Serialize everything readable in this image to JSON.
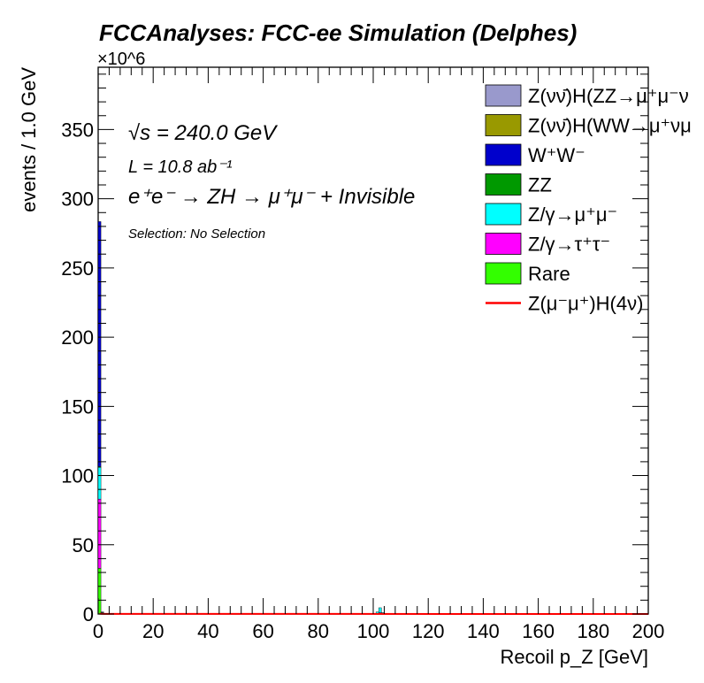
{
  "chart_data": {
    "type": "bar",
    "title": "FCCAnalyses: FCC-ee Simulation (Delphes)",
    "xlabel": "Recoil p_Z [GeV]",
    "ylabel": "events / 1.0 GeV",
    "yscale_label": "×10^6",
    "xlim": [
      0,
      200
    ],
    "ylim": [
      0,
      395
    ],
    "x_ticks": [
      0,
      20,
      40,
      60,
      80,
      100,
      120,
      140,
      160,
      180,
      200
    ],
    "y_ticks": [
      0,
      50,
      100,
      150,
      200,
      250,
      300,
      350
    ],
    "annotations": {
      "sqrt_s": "√s = 240.0 GeV",
      "luminosity": "L = 10.8 ab⁻¹",
      "process": "e⁺e⁻ → ZH → μ⁺μ⁻ + Invisible",
      "selection": "Selection: No Selection"
    },
    "bin_width": 1.0,
    "stack_order_bottom_to_top": [
      "Rare",
      "Z/γ→τ⁺τ⁻",
      "Z/γ→μ⁺μ⁻",
      "ZZ",
      "W⁺W⁻",
      "Z(νν̄)H(WW→μ⁺νμ⁻ν)",
      "Z(νν̄)H(ZZ→μ⁺μ⁻νν)"
    ],
    "series": [
      {
        "name": "Z(νν̄)H(ZZ→μ⁺μ⁻νν)",
        "color": "#9999cc",
        "kind": "fill",
        "points": [
          [
            0.5,
            0.0
          ]
        ]
      },
      {
        "name": "Z(νν̄)H(WW→μ⁺νμ⁻ν)",
        "color": "#999900",
        "kind": "fill",
        "points": [
          [
            0.5,
            0.0
          ]
        ]
      },
      {
        "name": "W⁺W⁻",
        "color": "#0000cc",
        "kind": "fill",
        "points": [
          [
            0.5,
            177
          ],
          [
            1.5,
            0.5
          ]
        ]
      },
      {
        "name": "ZZ",
        "color": "#009900",
        "kind": "fill",
        "points": [
          [
            0.5,
            0.5
          ]
        ]
      },
      {
        "name": "Z/γ→μ⁺μ⁻",
        "color": "#00ffff",
        "kind": "fill",
        "points": [
          [
            0.5,
            23
          ],
          [
            101.5,
            1.5
          ],
          [
            102.5,
            3.5
          ],
          [
            103.5,
            1.0
          ]
        ]
      },
      {
        "name": "Z/γ→τ⁺τ⁻",
        "color": "#ff00ff",
        "kind": "fill",
        "points": [
          [
            0.5,
            50
          ],
          [
            102.5,
            1.0
          ]
        ]
      },
      {
        "name": "Rare",
        "color": "#33ff00",
        "kind": "fill",
        "points": [
          [
            0.5,
            33
          ],
          [
            1.5,
            1.0
          ]
        ]
      },
      {
        "name": "Z(μ⁻μ⁺)H(4ν)",
        "color": "#ff0000",
        "kind": "line",
        "points": [
          [
            0.5,
            0.2
          ],
          [
            1.5,
            0.1
          ],
          [
            200,
            0.0
          ]
        ]
      }
    ]
  },
  "legend": [
    {
      "label": "Z(νν̄)H(ZZ→μ⁺μ⁻ν",
      "color": "#9999cc",
      "kind": "fill"
    },
    {
      "label": "Z(νν̄)H(WW→μ⁺νμ",
      "color": "#999900",
      "kind": "fill"
    },
    {
      "label": "W⁺W⁻",
      "color": "#0000cc",
      "kind": "fill"
    },
    {
      "label": "ZZ",
      "color": "#009900",
      "kind": "fill"
    },
    {
      "label": "Z/γ→μ⁺μ⁻",
      "color": "#00ffff",
      "kind": "fill"
    },
    {
      "label": "Z/γ→τ⁺τ⁻",
      "color": "#ff00ff",
      "kind": "fill"
    },
    {
      "label": "Rare",
      "color": "#33ff00",
      "kind": "fill"
    },
    {
      "label": "Z(μ⁻μ⁺)H(4ν)",
      "color": "#ff0000",
      "kind": "line"
    }
  ]
}
